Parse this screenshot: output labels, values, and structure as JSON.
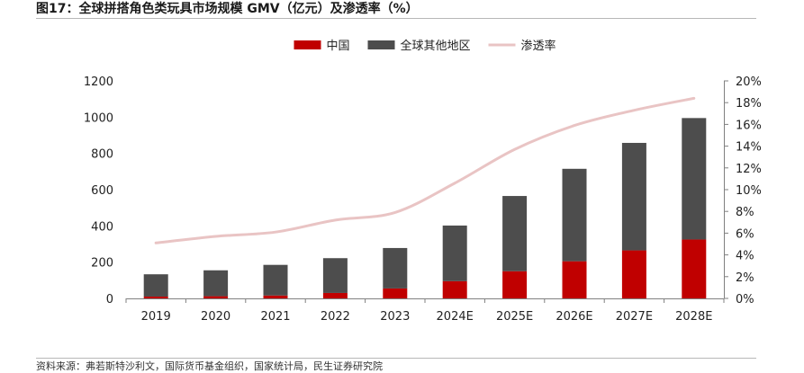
{
  "header": {
    "title": "图17：全球拼搭角色类玩具市场规模 GMV（亿元）及渗透率（%）"
  },
  "footer": {
    "source": "资料来源：弗若斯特沙利文，国际货币基金组织，国家统计局，民生证券研究院"
  },
  "colors": {
    "china": "#c00000",
    "other": "#4d4d4d",
    "penetration": "#e9c4c4",
    "axis": "#808080"
  },
  "chart_data": {
    "type": "bar",
    "stacked": true,
    "categories": [
      "2019",
      "2020",
      "2021",
      "2022",
      "2023",
      "2024E",
      "2025E",
      "2026E",
      "2027E",
      "2028E"
    ],
    "series": [
      {
        "name": "中国",
        "type": "bar",
        "axis": "left",
        "values": [
          10,
          12,
          16,
          30,
          55,
          95,
          150,
          205,
          265,
          325
        ]
      },
      {
        "name": "全球其他地区",
        "type": "bar",
        "axis": "left",
        "values": [
          123,
          143,
          169,
          192,
          223,
          307,
          415,
          510,
          593,
          670
        ]
      },
      {
        "name": "渗透率",
        "type": "line",
        "axis": "right",
        "unit": "%",
        "values": [
          5.1,
          5.7,
          6.1,
          7.2,
          7.9,
          10.6,
          13.7,
          15.9,
          17.3,
          18.4
        ]
      }
    ],
    "y_left": {
      "min": 0,
      "max": 1200,
      "ticks": [
        "0",
        "200",
        "400",
        "600",
        "800",
        "1000",
        "1200"
      ]
    },
    "y_right": {
      "min": 0,
      "max": 20,
      "ticks": [
        "0%",
        "2%",
        "4%",
        "6%",
        "8%",
        "10%",
        "12%",
        "14%",
        "16%",
        "18%",
        "20%"
      ]
    },
    "legend": [
      "中国",
      "全球其他地区",
      "渗透率"
    ],
    "legend_position": "top-center",
    "grid": false
  }
}
